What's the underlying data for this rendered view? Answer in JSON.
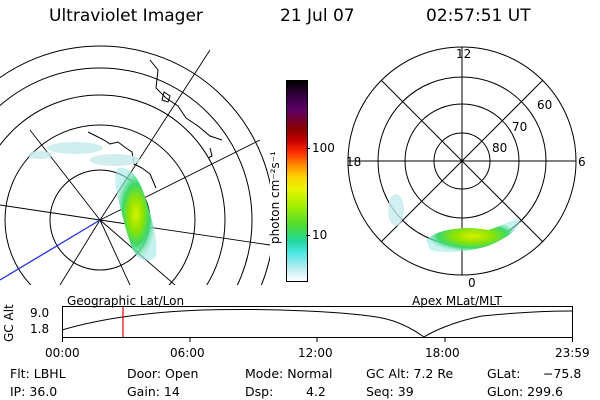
{
  "header": {
    "title": "Ultraviolet Imager",
    "date": "21 Jul 07",
    "time": "02:57:51 UT"
  },
  "colorbar": {
    "unit_label": "photon cm⁻²s⁻¹",
    "ticks": [
      "100",
      "10"
    ],
    "colors": [
      "#000000",
      "#2b0033",
      "#5a0066",
      "#8a0000",
      "#c80000",
      "#ff3000",
      "#ff8c00",
      "#ffd400",
      "#e8f500",
      "#a8ef00",
      "#4fdc2e",
      "#20d8a0",
      "#4fe6e6",
      "#bfeeee",
      "#ffffff"
    ]
  },
  "left_panel": {
    "caption": "Geographic Lat/Lon"
  },
  "right_panel": {
    "caption": "Apex MLat/MLT",
    "mlt_labels": {
      "top": "12",
      "left": "18",
      "right": "6",
      "bottom": "0"
    },
    "lat_labels": [
      "60",
      "70",
      "80"
    ]
  },
  "orbit_plot": {
    "y_label": "GC Alt",
    "y_ticks": [
      "9.0",
      "1.8"
    ],
    "x_ticks": [
      "00:00",
      "06:00",
      "12:00",
      "18:00",
      "23:59"
    ],
    "marker_color": "#e00000"
  },
  "info": {
    "flt": "Flt: LBHL",
    "ip": "IP: 36.0",
    "door": "Door: Open",
    "gain": "Gain: 14",
    "mode": "Mode: Normal",
    "dsp_label": "Dsp:",
    "dsp_value": "4.2",
    "gc_alt": "GC Alt: 7.2 Re",
    "seq": "Seq: 39",
    "glat_label": "GLat:",
    "glat_value": "−75.8",
    "glon": "GLon: 299.6"
  }
}
